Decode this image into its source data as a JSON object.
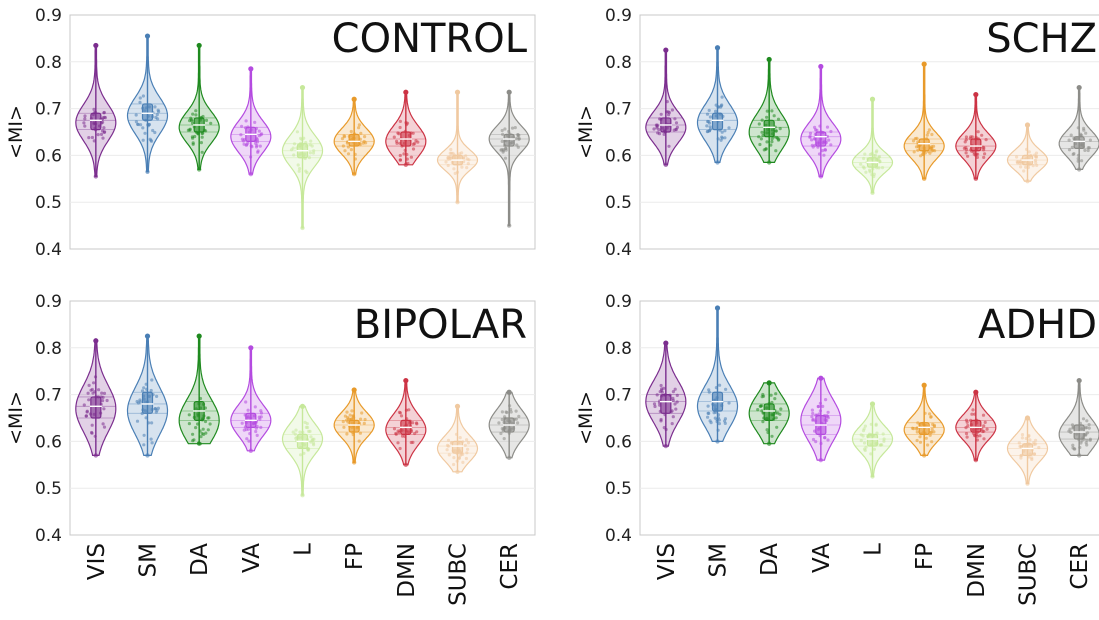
{
  "chart_data": [
    {
      "type": "violin",
      "title": "CONTROL",
      "ylabel": "<MI>",
      "ylim": [
        0.4,
        0.9
      ],
      "yticks": [
        "0.4",
        "0.5",
        "0.6",
        "0.7",
        "0.8",
        "0.9"
      ],
      "categories": [
        "VIS",
        "SM",
        "DA",
        "VA",
        "L",
        "FP",
        "DMN",
        "SUBC",
        "CER"
      ],
      "series": [
        {
          "name": "VIS",
          "min": 0.555,
          "max": 0.835,
          "q1": 0.655,
          "median": 0.675,
          "q3": 0.69,
          "mode": 0.67
        },
        {
          "name": "SM",
          "min": 0.565,
          "max": 0.855,
          "q1": 0.675,
          "median": 0.69,
          "q3": 0.71,
          "mode": 0.685
        },
        {
          "name": "DA",
          "min": 0.57,
          "max": 0.835,
          "q1": 0.65,
          "median": 0.665,
          "q3": 0.68,
          "mode": 0.66
        },
        {
          "name": "VA",
          "min": 0.56,
          "max": 0.785,
          "q1": 0.63,
          "median": 0.645,
          "q3": 0.66,
          "mode": 0.64
        },
        {
          "name": "L",
          "min": 0.445,
          "max": 0.745,
          "q1": 0.595,
          "median": 0.61,
          "q3": 0.625,
          "mode": 0.61
        },
        {
          "name": "FP",
          "min": 0.56,
          "max": 0.72,
          "q1": 0.62,
          "median": 0.63,
          "q3": 0.645,
          "mode": 0.63
        },
        {
          "name": "DMN",
          "min": 0.58,
          "max": 0.735,
          "q1": 0.62,
          "median": 0.635,
          "q3": 0.65,
          "mode": 0.63
        },
        {
          "name": "SUBC",
          "min": 0.5,
          "max": 0.735,
          "q1": 0.58,
          "median": 0.59,
          "q3": 0.6,
          "mode": 0.59
        },
        {
          "name": "CER",
          "min": 0.45,
          "max": 0.735,
          "q1": 0.62,
          "median": 0.635,
          "q3": 0.645,
          "mode": 0.635
        }
      ]
    },
    {
      "type": "violin",
      "title": "SCHZ",
      "ylabel": "<MI>",
      "ylim": [
        0.4,
        0.9
      ],
      "yticks": [
        "0.4",
        "0.5",
        "0.6",
        "0.7",
        "0.8",
        "0.9"
      ],
      "categories": [
        "VIS",
        "SM",
        "DA",
        "VA",
        "L",
        "FP",
        "DMN",
        "SUBC",
        "CER"
      ],
      "series": [
        {
          "name": "VIS",
          "min": 0.58,
          "max": 0.825,
          "q1": 0.65,
          "median": 0.665,
          "q3": 0.68,
          "mode": 0.66
        },
        {
          "name": "SM",
          "min": 0.585,
          "max": 0.83,
          "q1": 0.655,
          "median": 0.675,
          "q3": 0.69,
          "mode": 0.67
        },
        {
          "name": "DA",
          "min": 0.585,
          "max": 0.805,
          "q1": 0.64,
          "median": 0.66,
          "q3": 0.675,
          "mode": 0.65
        },
        {
          "name": "VA",
          "min": 0.555,
          "max": 0.79,
          "q1": 0.62,
          "median": 0.64,
          "q3": 0.65,
          "mode": 0.635
        },
        {
          "name": "L",
          "min": 0.52,
          "max": 0.72,
          "q1": 0.575,
          "median": 0.585,
          "q3": 0.595,
          "mode": 0.585
        },
        {
          "name": "FP",
          "min": 0.55,
          "max": 0.795,
          "q1": 0.61,
          "median": 0.625,
          "q3": 0.635,
          "mode": 0.62
        },
        {
          "name": "DMN",
          "min": 0.55,
          "max": 0.73,
          "q1": 0.61,
          "median": 0.62,
          "q3": 0.635,
          "mode": 0.62
        },
        {
          "name": "SUBC",
          "min": 0.545,
          "max": 0.665,
          "q1": 0.58,
          "median": 0.59,
          "q3": 0.6,
          "mode": 0.59
        },
        {
          "name": "CER",
          "min": 0.57,
          "max": 0.745,
          "q1": 0.615,
          "median": 0.63,
          "q3": 0.64,
          "mode": 0.625
        }
      ]
    },
    {
      "type": "violin",
      "title": "BIPOLAR",
      "ylabel": "<MI>",
      "ylim": [
        0.4,
        0.9
      ],
      "yticks": [
        "0.4",
        "0.5",
        "0.6",
        "0.7",
        "0.8",
        "0.9"
      ],
      "categories": [
        "VIS",
        "SM",
        "DA",
        "VA",
        "L",
        "FP",
        "DMN",
        "SUBC",
        "CER"
      ],
      "series": [
        {
          "name": "VIS",
          "min": 0.57,
          "max": 0.815,
          "q1": 0.65,
          "median": 0.675,
          "q3": 0.695,
          "mode": 0.67
        },
        {
          "name": "SM",
          "min": 0.57,
          "max": 0.825,
          "q1": 0.66,
          "median": 0.68,
          "q3": 0.705,
          "mode": 0.665
        },
        {
          "name": "DA",
          "min": 0.595,
          "max": 0.825,
          "q1": 0.645,
          "median": 0.665,
          "q3": 0.685,
          "mode": 0.645
        },
        {
          "name": "VA",
          "min": 0.58,
          "max": 0.8,
          "q1": 0.63,
          "median": 0.645,
          "q3": 0.66,
          "mode": 0.645
        },
        {
          "name": "L",
          "min": 0.485,
          "max": 0.675,
          "q1": 0.585,
          "median": 0.6,
          "q3": 0.615,
          "mode": 0.605
        },
        {
          "name": "FP",
          "min": 0.555,
          "max": 0.71,
          "q1": 0.62,
          "median": 0.635,
          "q3": 0.645,
          "mode": 0.635
        },
        {
          "name": "DMN",
          "min": 0.55,
          "max": 0.73,
          "q1": 0.615,
          "median": 0.63,
          "q3": 0.645,
          "mode": 0.625
        },
        {
          "name": "SUBC",
          "min": 0.535,
          "max": 0.675,
          "q1": 0.575,
          "median": 0.59,
          "q3": 0.6,
          "mode": 0.585
        },
        {
          "name": "CER",
          "min": 0.565,
          "max": 0.705,
          "q1": 0.62,
          "median": 0.635,
          "q3": 0.65,
          "mode": 0.635
        }
      ]
    },
    {
      "type": "violin",
      "title": "ADHD",
      "ylabel": "<MI>",
      "ylim": [
        0.4,
        0.9
      ],
      "yticks": [
        "0.4",
        "0.5",
        "0.6",
        "0.7",
        "0.8",
        "0.9"
      ],
      "categories": [
        "VIS",
        "SM",
        "DA",
        "VA",
        "L",
        "FP",
        "DMN",
        "SUBC",
        "CER"
      ],
      "series": [
        {
          "name": "VIS",
          "min": 0.59,
          "max": 0.81,
          "q1": 0.66,
          "median": 0.685,
          "q3": 0.7,
          "mode": 0.685
        },
        {
          "name": "SM",
          "min": 0.6,
          "max": 0.885,
          "q1": 0.665,
          "median": 0.685,
          "q3": 0.705,
          "mode": 0.675
        },
        {
          "name": "DA",
          "min": 0.595,
          "max": 0.725,
          "q1": 0.645,
          "median": 0.665,
          "q3": 0.68,
          "mode": 0.66
        },
        {
          "name": "VA",
          "min": 0.56,
          "max": 0.735,
          "q1": 0.615,
          "median": 0.635,
          "q3": 0.655,
          "mode": 0.645
        },
        {
          "name": "L",
          "min": 0.525,
          "max": 0.68,
          "q1": 0.59,
          "median": 0.605,
          "q3": 0.615,
          "mode": 0.605
        },
        {
          "name": "FP",
          "min": 0.57,
          "max": 0.72,
          "q1": 0.615,
          "median": 0.63,
          "q3": 0.64,
          "mode": 0.625
        },
        {
          "name": "DMN",
          "min": 0.56,
          "max": 0.705,
          "q1": 0.62,
          "median": 0.63,
          "q3": 0.645,
          "mode": 0.63
        },
        {
          "name": "SUBC",
          "min": 0.51,
          "max": 0.65,
          "q1": 0.57,
          "median": 0.585,
          "q3": 0.595,
          "mode": 0.585
        },
        {
          "name": "CER",
          "min": 0.57,
          "max": 0.73,
          "q1": 0.605,
          "median": 0.62,
          "q3": 0.635,
          "mode": 0.615
        }
      ]
    }
  ],
  "colors": {
    "VIS": "#7b2d8e",
    "SM": "#4a7fb5",
    "DA": "#1f8a1f",
    "VA": "#b44be0",
    "L": "#c6e89a",
    "FP": "#e89a2a",
    "DMN": "#cc3344",
    "SUBC": "#f0c9a0",
    "CER": "#8c8c88"
  }
}
